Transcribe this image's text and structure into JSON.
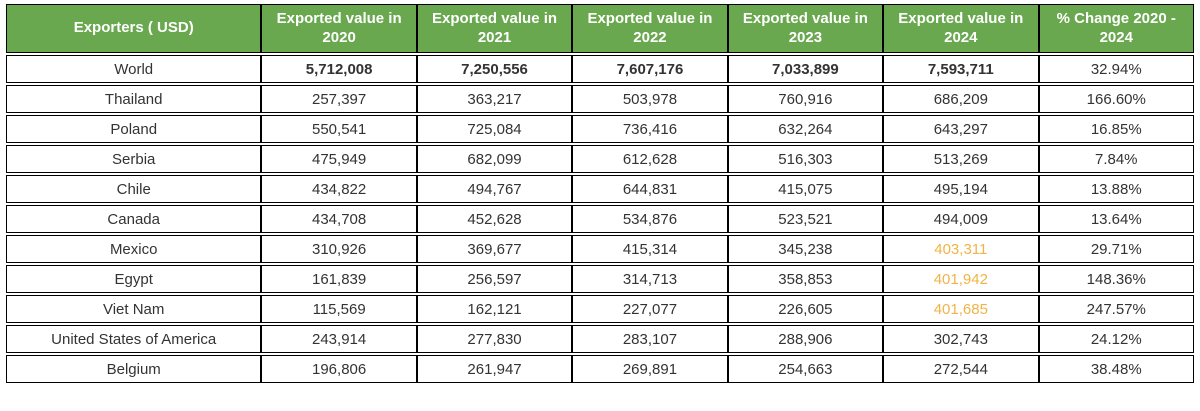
{
  "table": {
    "columns": [
      "Exporters ( USD)",
      "Exported value in 2020",
      "Exported value in 2021",
      "Exported value in 2022",
      "Exported value in 2023",
      "Exported value in 2024",
      "% Change 2020 - 2024"
    ],
    "rows": [
      {
        "exporter": "World",
        "values": [
          "5,712,008",
          "7,250,556",
          "7,607,176",
          "7,033,899",
          "7,593,711"
        ],
        "pct_change": "32.94%",
        "bold_values": true,
        "highlight_2024": false
      },
      {
        "exporter": "Thailand",
        "values": [
          "257,397",
          "363,217",
          "503,978",
          "760,916",
          "686,209"
        ],
        "pct_change": "166.60%",
        "bold_values": false,
        "highlight_2024": false
      },
      {
        "exporter": "Poland",
        "values": [
          "550,541",
          "725,084",
          "736,416",
          "632,264",
          "643,297"
        ],
        "pct_change": "16.85%",
        "bold_values": false,
        "highlight_2024": false
      },
      {
        "exporter": "Serbia",
        "values": [
          "475,949",
          "682,099",
          "612,628",
          "516,303",
          "513,269"
        ],
        "pct_change": "7.84%",
        "bold_values": false,
        "highlight_2024": false
      },
      {
        "exporter": "Chile",
        "values": [
          "434,822",
          "494,767",
          "644,831",
          "415,075",
          "495,194"
        ],
        "pct_change": "13.88%",
        "bold_values": false,
        "highlight_2024": false
      },
      {
        "exporter": "Canada",
        "values": [
          "434,708",
          "452,628",
          "534,876",
          "523,521",
          "494,009"
        ],
        "pct_change": "13.64%",
        "bold_values": false,
        "highlight_2024": false
      },
      {
        "exporter": "Mexico",
        "values": [
          "310,926",
          "369,677",
          "415,314",
          "345,238",
          "403,311"
        ],
        "pct_change": "29.71%",
        "bold_values": false,
        "highlight_2024": true
      },
      {
        "exporter": "Egypt",
        "values": [
          "161,839",
          "256,597",
          "314,713",
          "358,853",
          "401,942"
        ],
        "pct_change": "148.36%",
        "bold_values": false,
        "highlight_2024": true
      },
      {
        "exporter": "Viet Nam",
        "values": [
          "115,569",
          "162,121",
          "227,077",
          "226,605",
          "401,685"
        ],
        "pct_change": "247.57%",
        "bold_values": false,
        "highlight_2024": true
      },
      {
        "exporter": "United States of America",
        "values": [
          "243,914",
          "277,830",
          "283,107",
          "288,906",
          "302,743"
        ],
        "pct_change": "24.12%",
        "bold_values": false,
        "highlight_2024": false
      },
      {
        "exporter": "Belgium",
        "values": [
          "196,806",
          "261,947",
          "269,891",
          "254,663",
          "272,544"
        ],
        "pct_change": "38.48%",
        "bold_values": false,
        "highlight_2024": false
      }
    ],
    "colors": {
      "header_bg": "#6aa84f",
      "header_text": "#ffffff",
      "highlight_value": "#f0b445",
      "body_text": "#333333",
      "border": "#000000",
      "row_bg": "#ffffff"
    }
  }
}
